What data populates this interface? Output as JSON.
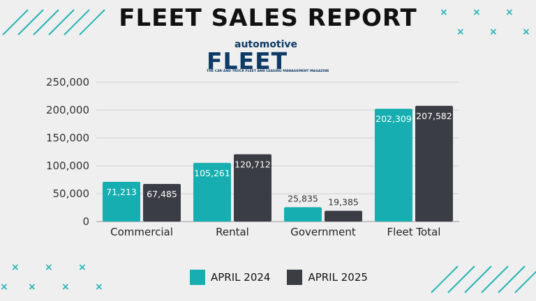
{
  "title": "FLEET SALES REPORT",
  "logo": {
    "top": "automotive",
    "main": "FLEET",
    "tagline": "THE CAR AND TRUCK FLEET AND LEASING MANAGEMENT MAGAZINE"
  },
  "colors": {
    "series1": "#16aeb0",
    "series2": "#3b3d45",
    "accent": "#26b3b5"
  },
  "chart_data": {
    "type": "bar",
    "title": "FLEET SALES REPORT",
    "categories": [
      "Commercial",
      "Rental",
      "Government",
      "Fleet Total"
    ],
    "series": [
      {
        "name": "APRIL 2024",
        "values": [
          71213,
          105261,
          25835,
          202309
        ],
        "labels": [
          "71,213",
          "105,261",
          "25,835",
          "202,309"
        ]
      },
      {
        "name": "APRIL 2025",
        "values": [
          67485,
          120712,
          19385,
          207582
        ],
        "labels": [
          "67,485",
          "120,712",
          "19,385",
          "207,582"
        ]
      }
    ],
    "yticks": [
      "0",
      "50,000",
      "100,000",
      "150,000",
      "200,000",
      "250,000"
    ],
    "ylim": [
      0,
      250000
    ],
    "grid": true,
    "legend": "bottom"
  }
}
